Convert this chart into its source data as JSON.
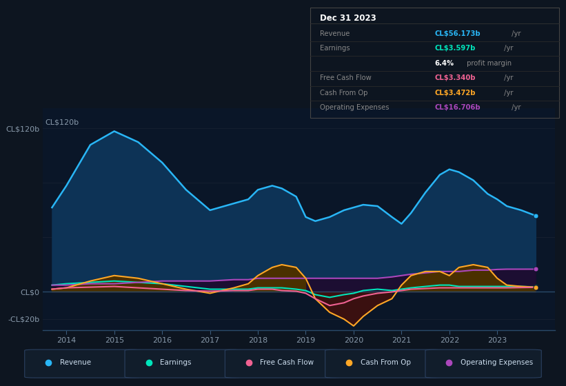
{
  "bg_color": "#0d1520",
  "plot_bg_color": "#0a1628",
  "grid_color": "#162030",
  "years": [
    2013.7,
    2014.0,
    2014.5,
    2015.0,
    2015.5,
    2016.0,
    2016.5,
    2017.0,
    2017.5,
    2017.8,
    2018.0,
    2018.3,
    2018.5,
    2018.8,
    2019.0,
    2019.2,
    2019.5,
    2019.8,
    2020.0,
    2020.2,
    2020.5,
    2020.8,
    2021.0,
    2021.2,
    2021.5,
    2021.8,
    2022.0,
    2022.2,
    2022.5,
    2022.8,
    2023.0,
    2023.2,
    2023.5,
    2023.8
  ],
  "revenue": [
    62,
    78,
    108,
    118,
    110,
    95,
    75,
    60,
    65,
    68,
    75,
    78,
    76,
    70,
    55,
    52,
    55,
    60,
    62,
    64,
    63,
    55,
    50,
    58,
    73,
    86,
    90,
    88,
    82,
    72,
    68,
    63,
    60,
    56
  ],
  "earnings": [
    5,
    6,
    7,
    8,
    7,
    6,
    4,
    2,
    2,
    2,
    3,
    3,
    3,
    2,
    1,
    -2,
    -4,
    -2,
    -1,
    1,
    2,
    1,
    2,
    3,
    4,
    5,
    5,
    4,
    4,
    4,
    4,
    4,
    4,
    3.6
  ],
  "free_cash_flow": [
    2,
    3,
    3.5,
    4,
    3,
    2,
    1,
    0.5,
    1,
    1,
    2,
    2,
    1,
    0.5,
    -1,
    -5,
    -10,
    -8,
    -5,
    -3,
    -1,
    0,
    1,
    2,
    2.5,
    3,
    3,
    3,
    3,
    3,
    3,
    3,
    3.2,
    3.34
  ],
  "cash_from_op": [
    2,
    3,
    8,
    12,
    10,
    6,
    2,
    -1,
    3,
    6,
    12,
    18,
    20,
    18,
    10,
    -5,
    -15,
    -20,
    -25,
    -18,
    -10,
    -5,
    5,
    12,
    15,
    15,
    12,
    18,
    20,
    18,
    10,
    5,
    4,
    3.472
  ],
  "operating_exp": [
    5,
    5,
    6,
    6,
    7,
    8,
    8,
    8,
    9,
    9,
    10,
    10,
    10,
    10,
    10,
    10,
    10,
    10,
    10,
    10,
    10,
    11,
    12,
    13,
    14,
    15,
    15,
    15,
    16,
    16,
    16.5,
    16.7,
    16.7,
    16.706
  ],
  "xlim": [
    2013.5,
    2024.2
  ],
  "ylim": [
    -28,
    135
  ],
  "ytick_positions": [
    -20,
    0,
    120
  ],
  "ytick_labels": [
    "-CL$20b",
    "CL$0",
    "CL$120b"
  ],
  "xtick_positions": [
    2014,
    2015,
    2016,
    2017,
    2018,
    2019,
    2020,
    2021,
    2022,
    2023
  ],
  "xtick_labels": [
    "2014",
    "2015",
    "2016",
    "2017",
    "2018",
    "2019",
    "2020",
    "2021",
    "2022",
    "2023"
  ],
  "revenue_line_color": "#29b6f6",
  "revenue_fill_color": "#0d3356",
  "earnings_line_color": "#00e5bc",
  "earnings_fill_color": "#0a3328",
  "free_cf_line_color": "#f06292",
  "cash_op_line_color": "#ffa726",
  "cash_op_fill_pos_color": "#4a3000",
  "cash_op_fill_neg_color": "#3a1010",
  "op_exp_line_color": "#ab47bc",
  "op_exp_fill_color": "#1e0a2e",
  "zero_line_color": "#2a4a6a",
  "legend_bg_color": "#111d2b",
  "legend_border_color": "#2a4060",
  "legend_items": [
    {
      "label": "Revenue",
      "color": "#29b6f6"
    },
    {
      "label": "Earnings",
      "color": "#00e5bc"
    },
    {
      "label": "Free Cash Flow",
      "color": "#f06292"
    },
    {
      "label": "Cash From Op",
      "color": "#ffa726"
    },
    {
      "label": "Operating Expenses",
      "color": "#ab47bc"
    }
  ],
  "info_box": {
    "date": "Dec 31 2023",
    "rows": [
      {
        "label": "Revenue",
        "value": "CL$56.173b",
        "vcolor": "#29b6f6",
        "suffix": " /yr"
      },
      {
        "label": "Earnings",
        "value": "CL$3.597b",
        "vcolor": "#00e5bc",
        "suffix": " /yr"
      },
      {
        "label": "",
        "value": "6.4%",
        "vcolor": "#ffffff",
        "suffix": " profit margin"
      },
      {
        "label": "Free Cash Flow",
        "value": "CL$3.340b",
        "vcolor": "#f06292",
        "suffix": " /yr"
      },
      {
        "label": "Cash From Op",
        "value": "CL$3.472b",
        "vcolor": "#ffa726",
        "suffix": " /yr"
      },
      {
        "label": "Operating Expenses",
        "value": "CL$16.706b",
        "vcolor": "#ab47bc",
        "suffix": " /yr"
      }
    ]
  }
}
